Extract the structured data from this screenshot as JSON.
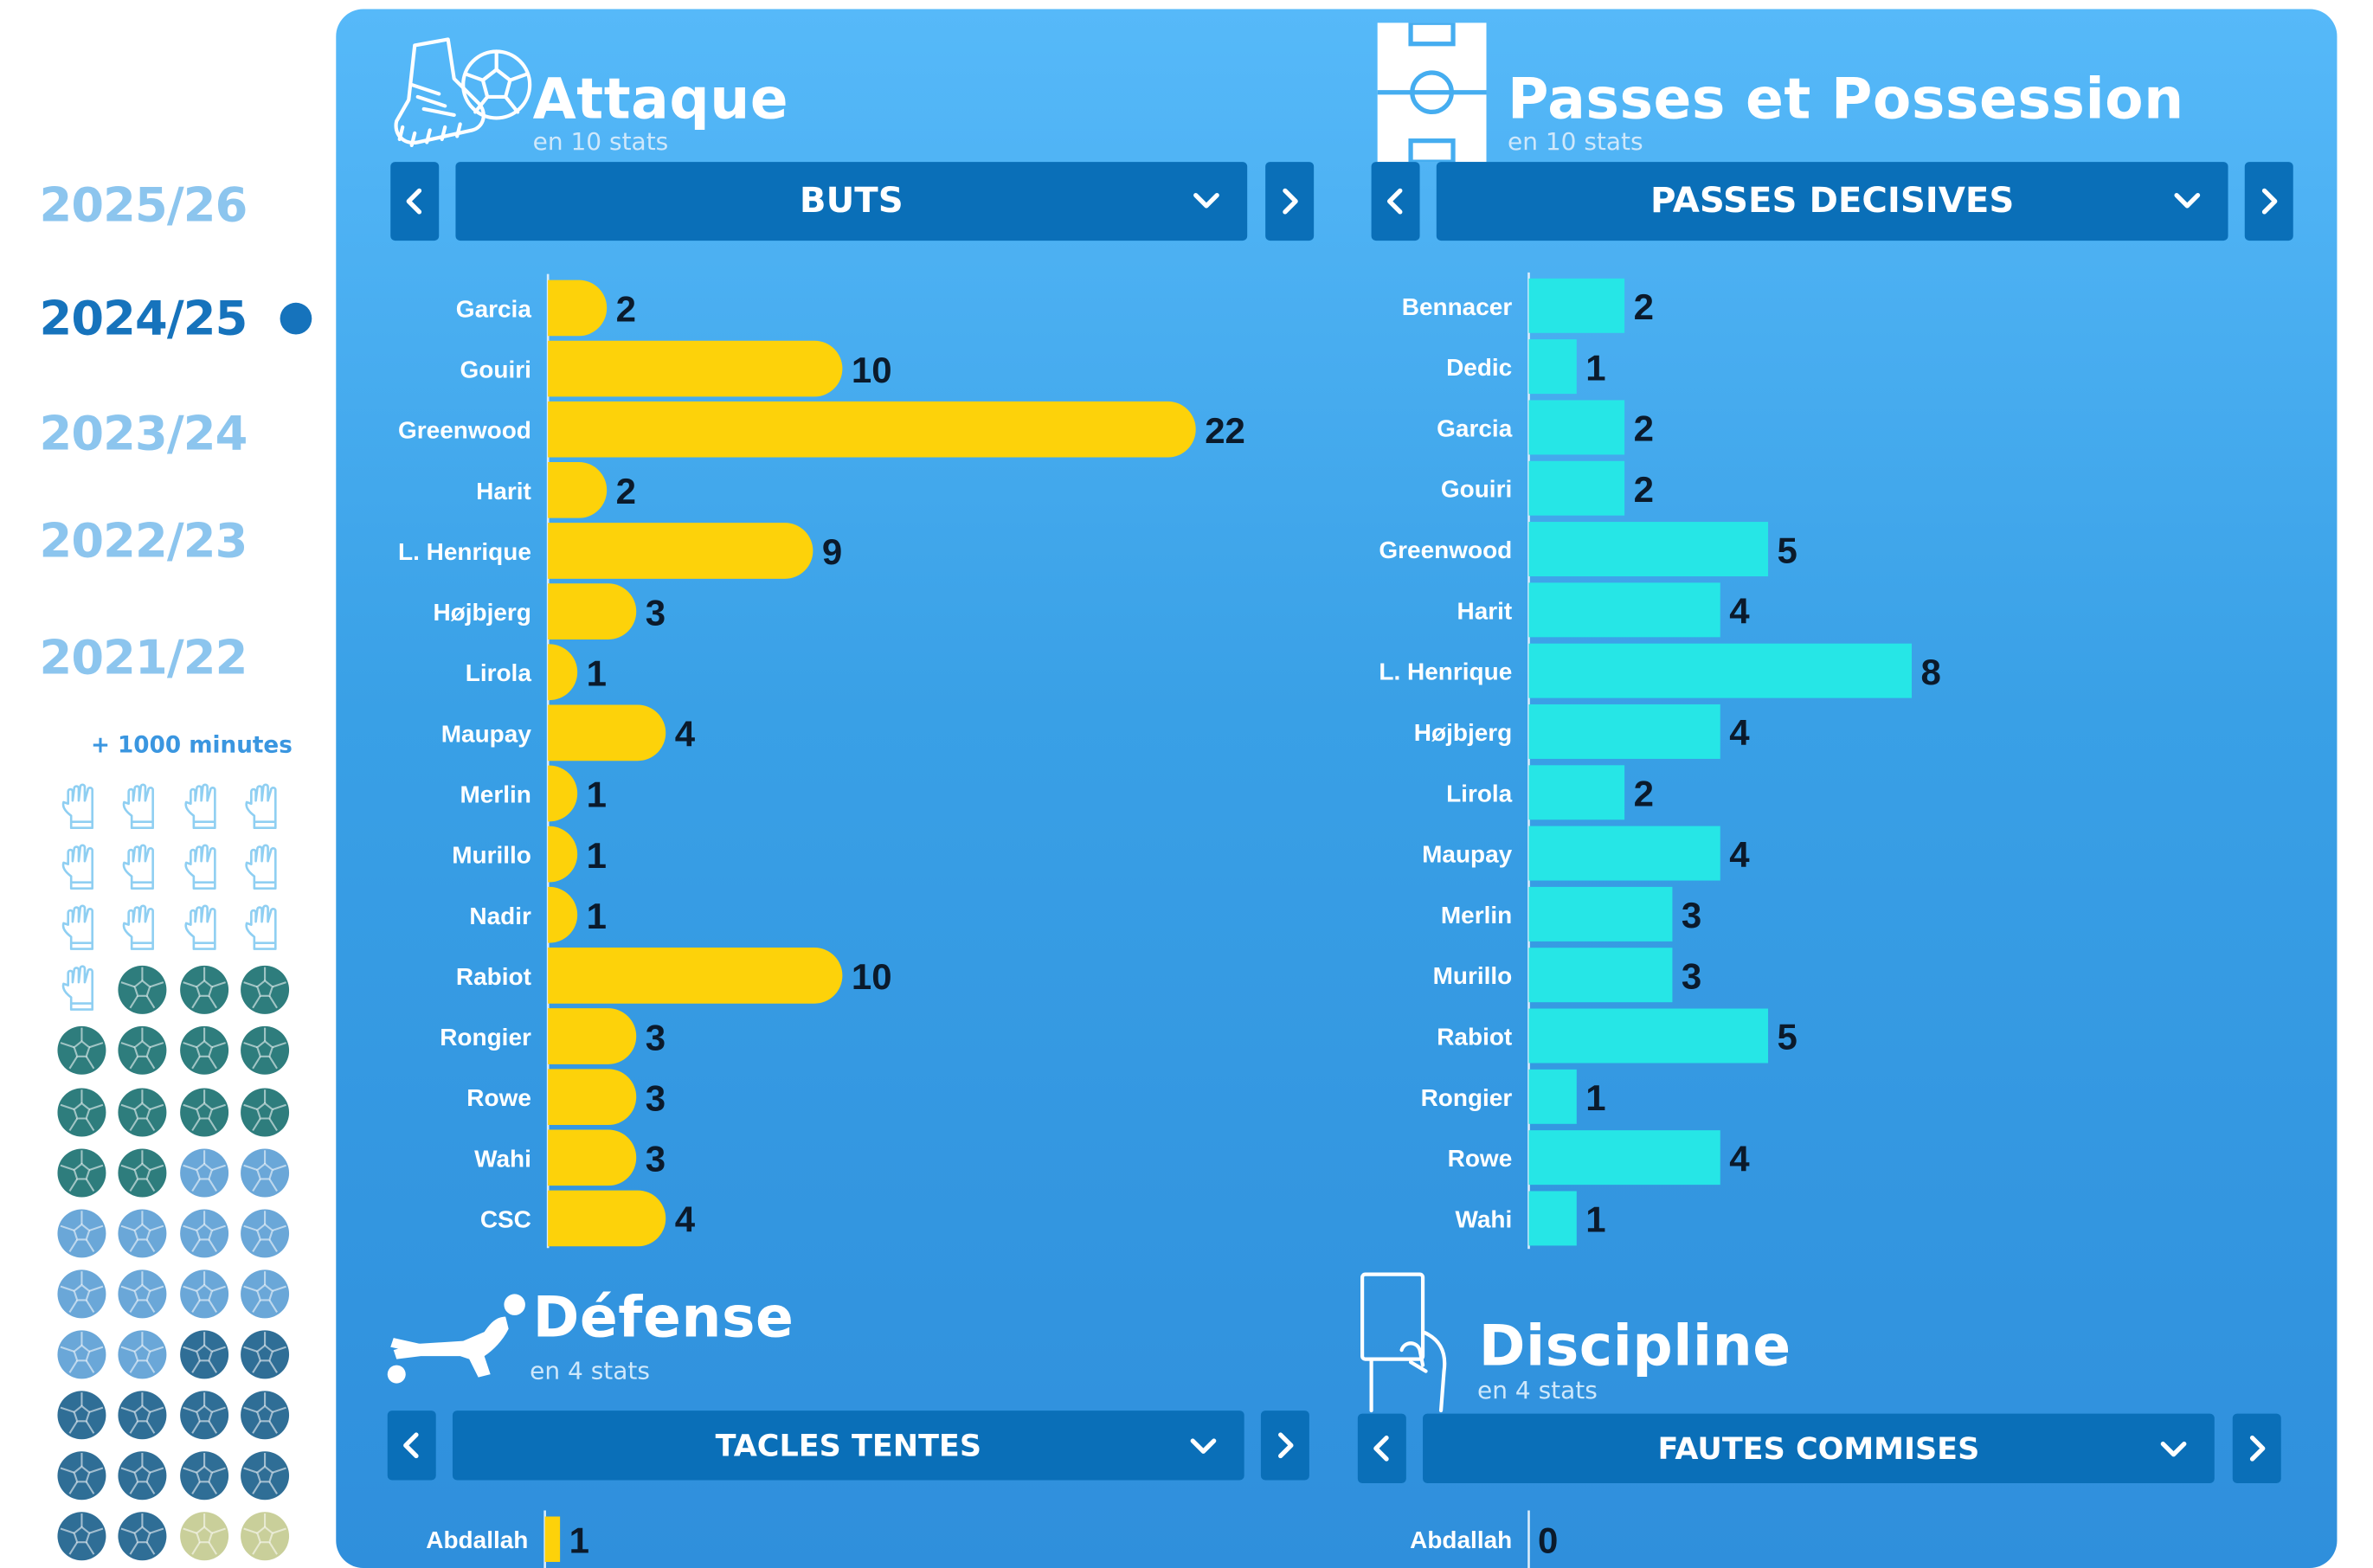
{
  "seasons": [
    "2025/26",
    "2024/25",
    "2023/24",
    "2022/23",
    "2021/22"
  ],
  "active_season": "2024/25",
  "minutes_label": "+ 1000 minutes",
  "colors": {
    "accent": "#1673bc",
    "attack_bar": "#fdd20a",
    "passes_bar": "#26e6e6",
    "panel": "#3ea7ee",
    "select": "#0a6fb8"
  },
  "squad_icons": [
    "glove-icon",
    "glove-icon",
    "glove-icon",
    "glove-icon",
    "glove-icon",
    "glove-icon",
    "glove-icon",
    "glove-icon",
    "glove-icon",
    "glove-icon",
    "glove-icon",
    "glove-icon",
    "glove-icon",
    "ball-icon-teal",
    "ball-icon-teal",
    "ball-icon-teal",
    "ball-icon-teal",
    "ball-icon-teal",
    "ball-icon-teal",
    "ball-icon-teal",
    "ball-icon-teal",
    "ball-icon-teal",
    "ball-icon-teal",
    "ball-icon-teal",
    "ball-icon-teal",
    "ball-icon-teal",
    "ball-icon-light",
    "ball-icon-light",
    "ball-icon-light",
    "ball-icon-light",
    "ball-icon-light",
    "ball-icon-light",
    "ball-icon-light",
    "ball-icon-light",
    "ball-icon-light",
    "ball-icon-light",
    "ball-icon-light",
    "ball-icon-light",
    "ball-icon-dark",
    "ball-icon-dark",
    "ball-icon-dark",
    "ball-icon-dark",
    "ball-icon-dark",
    "ball-icon-dark",
    "ball-icon-dark",
    "ball-icon-dark",
    "ball-icon-dark",
    "ball-icon-dark",
    "ball-icon-dark",
    "ball-icon-dark",
    "ball-icon-olive",
    "ball-icon-olive"
  ],
  "sections": {
    "attack": {
      "title": "Attaque",
      "subtitle": "en 10 stats",
      "selected": "BUTS",
      "icon": "boot-ball-icon"
    },
    "passes": {
      "title": "Passes et Possession",
      "subtitle": "en 10 stats",
      "selected": "PASSES DECISIVES",
      "icon": "pitch-icon"
    },
    "defense": {
      "title": "Défense",
      "subtitle": "en 4 stats",
      "selected": "TACLES TENTES",
      "icon": "sliding-player-icon"
    },
    "discipline": {
      "title": "Discipline",
      "subtitle": "en 4 stats",
      "selected": "FAUTES COMMISES",
      "icon": "card-hand-icon"
    }
  },
  "chart_data": [
    {
      "id": "attack",
      "type": "bar",
      "orientation": "horizontal",
      "title": "BUTS",
      "categories": [
        "Garcia",
        "Gouiri",
        "Greenwood",
        "Harit",
        "L. Henrique",
        "Højbjerg",
        "Lirola",
        "Maupay",
        "Merlin",
        "Murillo",
        "Nadir",
        "Rabiot",
        "Rongier",
        "Rowe",
        "Wahi",
        "CSC"
      ],
      "values": [
        2,
        10,
        22,
        2,
        9,
        3,
        1,
        4,
        1,
        1,
        1,
        10,
        3,
        3,
        3,
        4
      ],
      "xlim": [
        0,
        22
      ]
    },
    {
      "id": "passes",
      "type": "bar",
      "orientation": "horizontal",
      "title": "PASSES DECISIVES",
      "categories": [
        "Bennacer",
        "Dedic",
        "Garcia",
        "Gouiri",
        "Greenwood",
        "Harit",
        "L. Henrique",
        "Højbjerg",
        "Lirola",
        "Maupay",
        "Merlin",
        "Murillo",
        "Rabiot",
        "Rongier",
        "Rowe",
        "Wahi"
      ],
      "values": [
        2,
        1,
        2,
        2,
        5,
        4,
        8,
        4,
        2,
        4,
        3,
        3,
        5,
        1,
        4,
        1
      ],
      "xlim": [
        0,
        8
      ]
    },
    {
      "id": "defense",
      "type": "bar",
      "orientation": "horizontal",
      "title": "TACLES TENTES",
      "categories": [
        "Abdallah"
      ],
      "values": [
        1
      ]
    },
    {
      "id": "discipline",
      "type": "bar",
      "orientation": "horizontal",
      "title": "FAUTES COMMISES",
      "categories": [
        "Abdallah"
      ],
      "values": [
        0
      ]
    }
  ]
}
